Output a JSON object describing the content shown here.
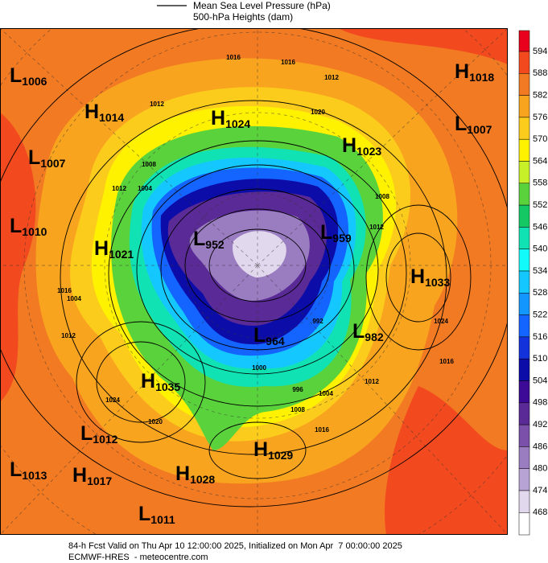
{
  "header": {
    "legend_line_label": "Mean Sea Level Pressure (hPa)",
    "subtitle": "500-hPa Heights (dam)"
  },
  "colorbar": {
    "levels": [
      594,
      588,
      582,
      576,
      570,
      564,
      558,
      552,
      546,
      540,
      534,
      528,
      522,
      516,
      510,
      504,
      498,
      492,
      486,
      480,
      474,
      468
    ],
    "colors": [
      "#e8001c",
      "#f24a1e",
      "#f27a22",
      "#f8a41e",
      "#fccc1c",
      "#fff200",
      "#c8f028",
      "#5ad23c",
      "#14c864",
      "#10e2b4",
      "#12fafa",
      "#14c8ff",
      "#1496ff",
      "#1464ff",
      "#1432dc",
      "#0c0ca8",
      "#3c0a96",
      "#5a2a96",
      "#7a50aa",
      "#9a7cc0",
      "#b8a4d4",
      "#e2d8ee",
      "#ffffff"
    ]
  },
  "pressure_centers": [
    {
      "type": "L",
      "value": 1006
    },
    {
      "type": "H",
      "value": 1014
    },
    {
      "type": "H",
      "value": 1024
    },
    {
      "type": "H",
      "value": 1023
    },
    {
      "type": "H",
      "value": 1018
    },
    {
      "type": "L",
      "value": 1007
    },
    {
      "type": "L",
      "value": 1007
    },
    {
      "type": "L",
      "value": 1010
    },
    {
      "type": "H",
      "value": 1021
    },
    {
      "type": "L",
      "value": 952
    },
    {
      "type": "L",
      "value": 959
    },
    {
      "type": "H",
      "value": 1033
    },
    {
      "type": "L",
      "value": 964
    },
    {
      "type": "L",
      "value": 982
    },
    {
      "type": "H",
      "value": 1035
    },
    {
      "type": "L",
      "value": 1012
    },
    {
      "type": "H",
      "value": 1029
    },
    {
      "type": "L",
      "value": 1013
    },
    {
      "type": "H",
      "value": 1017
    },
    {
      "type": "H",
      "value": 1028
    },
    {
      "type": "L",
      "value": 1011
    }
  ],
  "contour_labels": [
    1016,
    1016,
    1012,
    1012,
    1020,
    1008,
    1004,
    1012,
    1008,
    1012,
    1016,
    1004,
    1012,
    1024,
    1000,
    996,
    992,
    1004,
    1012,
    1016,
    1008,
    1024,
    1020,
    1016
  ],
  "footer": {
    "line1": "84-h Fcst Valid on Thu Apr 10 12:00:00 2025, Initialized on Mon Apr  7 00:00:00 2025",
    "line2": "ECMWF-HRES  - meteocentre.com"
  }
}
